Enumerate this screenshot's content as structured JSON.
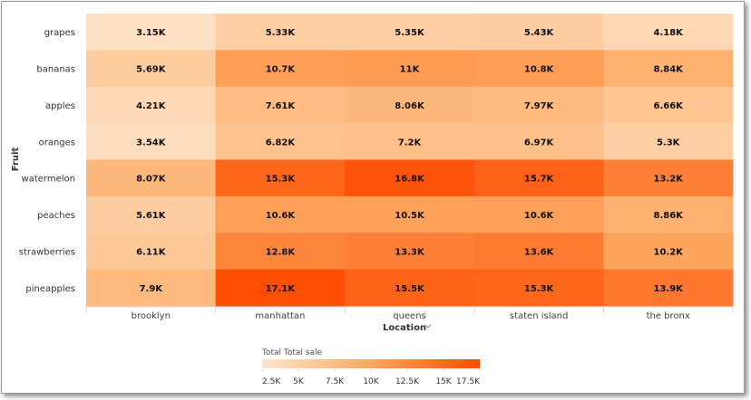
{
  "chart_data": {
    "type": "heatmap",
    "xlabel": "Location",
    "ylabel": "Fruit",
    "x_categories": [
      "brooklyn",
      "manhattan",
      "queens",
      "staten island",
      "the bronx"
    ],
    "y_categories": [
      "grapes",
      "bananas",
      "apples",
      "oranges",
      "watermelon",
      "peaches",
      "strawberries",
      "pineapples"
    ],
    "values": [
      [
        3150,
        5330,
        5350,
        5430,
        4180
      ],
      [
        5690,
        10700,
        11000,
        10800,
        8840
      ],
      [
        4210,
        7610,
        8060,
        7970,
        6660
      ],
      [
        3540,
        6820,
        7200,
        6970,
        5300
      ],
      [
        8070,
        15300,
        16800,
        15700,
        13200
      ],
      [
        5610,
        10600,
        10500,
        10600,
        8860
      ],
      [
        6110,
        12800,
        13300,
        13600,
        10200
      ],
      [
        7900,
        17100,
        15500,
        15300,
        13900
      ]
    ],
    "labels": [
      [
        "3.15K",
        "5.33K",
        "5.35K",
        "5.43K",
        "4.18K"
      ],
      [
        "5.69K",
        "10.7K",
        "11K",
        "10.8K",
        "8.84K"
      ],
      [
        "4.21K",
        "7.61K",
        "8.06K",
        "7.97K",
        "6.66K"
      ],
      [
        "3.54K",
        "6.82K",
        "7.2K",
        "6.97K",
        "5.3K"
      ],
      [
        "8.07K",
        "15.3K",
        "16.8K",
        "15.7K",
        "13.2K"
      ],
      [
        "5.61K",
        "10.6K",
        "10.5K",
        "10.6K",
        "8.86K"
      ],
      [
        "6.11K",
        "12.8K",
        "13.3K",
        "13.6K",
        "10.2K"
      ],
      [
        "7.9K",
        "17.1K",
        "15.5K",
        "15.3K",
        "13.9K"
      ]
    ],
    "legend": {
      "title": "Total Total sale",
      "range": [
        2500,
        17500
      ],
      "ticks": [
        2500,
        5000,
        7500,
        10000,
        12500,
        15000,
        17500
      ],
      "tick_labels": [
        "2.5K",
        "5K",
        "7.5K",
        "10K",
        "12.5K",
        "15K",
        "17.5K"
      ],
      "placement": "bottom"
    },
    "colors": {
      "low": "#fee6cd",
      "mid": "#fea860",
      "high": "#fe4a00"
    }
  }
}
